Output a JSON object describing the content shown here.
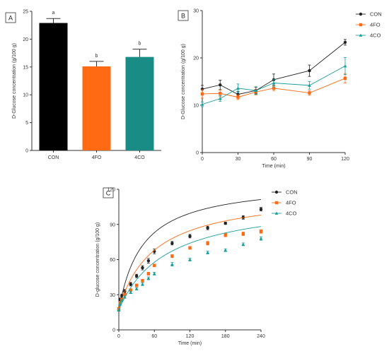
{
  "chart_data": [
    {
      "panel": "A",
      "type": "bar",
      "ylabel": "D-Glucose concentration (g/100 g)",
      "xlabel": "",
      "categories": [
        "CON",
        "4FO",
        "4CO"
      ],
      "values": [
        22.9,
        15.1,
        16.8
      ],
      "errors": [
        0.8,
        0.9,
        1.4
      ],
      "significance": [
        "a",
        "b",
        "b"
      ],
      "colors": [
        "#000000",
        "#ff6a13",
        "#1a8c86"
      ],
      "ylim": [
        0,
        25
      ],
      "yticks": [
        "0",
        "5",
        "10",
        "15",
        "20",
        "25"
      ],
      "grid": false
    },
    {
      "panel": "B",
      "type": "line",
      "xlabel": "Time (min)",
      "ylabel": "D-Glucose concentration (g/100 g)",
      "x": [
        0,
        15,
        30,
        45,
        60,
        90,
        120
      ],
      "xlim": [
        0,
        120
      ],
      "ylim": [
        0,
        30
      ],
      "xticks": [
        "0",
        "30",
        "60",
        "90",
        "120"
      ],
      "yticks": [
        "0",
        "10",
        "20",
        "30"
      ],
      "legend_position": "top-right",
      "grid": false,
      "series": [
        {
          "name": "CON",
          "color": "#222222",
          "marker": "circle",
          "values": [
            13.4,
            14.3,
            12.3,
            13.1,
            15.4,
            17.3,
            23.3
          ],
          "errors": [
            0.8,
            1.0,
            0.6,
            0.7,
            1.2,
            1.2,
            0.6
          ]
        },
        {
          "name": "4FO",
          "color": "#ff6a13",
          "marker": "square",
          "values": [
            12.4,
            12.5,
            11.7,
            12.8,
            13.6,
            12.6,
            15.7
          ],
          "errors": [
            0.9,
            0.7,
            0.5,
            0.6,
            0.5,
            0.5,
            1.0
          ]
        },
        {
          "name": "4CO",
          "color": "#1a9f9a",
          "marker": "triangle",
          "values": [
            10.2,
            11.4,
            13.6,
            13.1,
            14.7,
            14.2,
            18.3
          ],
          "errors": [
            0.5,
            0.6,
            0.9,
            0.8,
            0.8,
            0.8,
            1.8
          ]
        }
      ]
    },
    {
      "panel": "C",
      "type": "scatter",
      "xlabel": "Time (min)",
      "ylabel": "D-glucose concentration (g/100 g)",
      "x": [
        0,
        2,
        5,
        10,
        20,
        30,
        40,
        50,
        60,
        90,
        120,
        150,
        180,
        210,
        240
      ],
      "xlim": [
        0,
        240
      ],
      "ylim": [
        0,
        120
      ],
      "xticks": [
        "0",
        "60",
        "120",
        "180",
        "240"
      ],
      "yticks": [
        "0",
        "30",
        "60",
        "90",
        "120"
      ],
      "legend_position": "top-right",
      "grid": false,
      "series": [
        {
          "name": "CON",
          "color": "#222222",
          "marker": "circle",
          "values": [
            17,
            26,
            29,
            33,
            39,
            46,
            53,
            59,
            67,
            74,
            80,
            87,
            91,
            96,
            103
          ],
          "errors": [
            1.0,
            1.2,
            1.5,
            1.5,
            1.5,
            1.5,
            1.8,
            2.0,
            2.0,
            1.5,
            1.5,
            1.5,
            1.0,
            1.5,
            1.5
          ],
          "fit_vmax": 110,
          "fit_km": 40,
          "fit_y0": 17
        },
        {
          "name": "4FO",
          "color": "#ff6a13",
          "marker": "square",
          "values": [
            18,
            23,
            26,
            30,
            34,
            38,
            42,
            48,
            55,
            63,
            70,
            74,
            81,
            82,
            84
          ],
          "errors": [
            1.0,
            1.0,
            1.0,
            1.0,
            1.0,
            1.2,
            1.2,
            1.2,
            1.2,
            1.2,
            1.2,
            1.5,
            1.5,
            1.5,
            1.5
          ],
          "fit_vmax": 100,
          "fit_km": 60,
          "fit_y0": 18
        },
        {
          "name": "4CO",
          "color": "#1a9f9a",
          "marker": "triangle",
          "values": [
            17,
            22,
            25,
            28,
            32,
            35,
            39,
            44,
            48,
            56,
            60,
            66,
            68,
            73,
            78
          ],
          "errors": [
            1.0,
            1.0,
            1.0,
            1.0,
            1.0,
            1.0,
            1.2,
            1.2,
            1.2,
            1.5,
            1.2,
            1.2,
            1.2,
            1.2,
            1.5
          ],
          "fit_vmax": 95,
          "fit_km": 80,
          "fit_y0": 17
        }
      ]
    }
  ]
}
